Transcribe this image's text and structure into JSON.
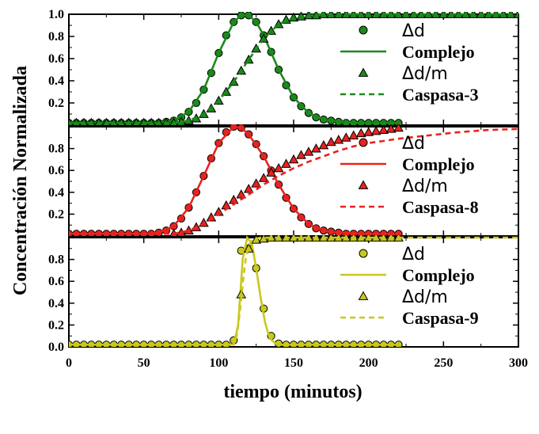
{
  "chart_data": {
    "type": "line",
    "xlabel": "tiempo (minutos)",
    "ylabel": "Concentración Normalizada",
    "xlim": [
      0,
      300
    ],
    "x_ticks": [
      "0",
      "50",
      "100",
      "150",
      "200",
      "250",
      "300"
    ],
    "grid": false,
    "legend_position": "right",
    "panels": [
      {
        "id": "caspasa-3",
        "color": "#1a8a1a",
        "ylim": [
          0,
          1.0
        ],
        "y_ticks": [
          "1.0",
          "0.8",
          "0.6",
          "0.4",
          "0.2"
        ],
        "series": [
          {
            "name": "Δd",
            "style": "circle",
            "x": [
              0,
              5,
              10,
              15,
              20,
              25,
              30,
              35,
              40,
              45,
              50,
              55,
              60,
              65,
              70,
              75,
              80,
              85,
              90,
              95,
              100,
              105,
              110,
              115,
              120,
              125,
              130,
              135,
              140,
              145,
              150,
              155,
              160,
              165,
              170,
              175,
              180,
              185,
              190,
              195,
              200,
              205,
              210,
              215,
              220
            ],
            "y": [
              0.02,
              0.02,
              0.02,
              0.02,
              0.02,
              0.02,
              0.02,
              0.02,
              0.02,
              0.02,
              0.02,
              0.02,
              0.02,
              0.03,
              0.04,
              0.07,
              0.12,
              0.2,
              0.32,
              0.47,
              0.65,
              0.81,
              0.93,
              0.99,
              0.99,
              0.93,
              0.81,
              0.66,
              0.5,
              0.36,
              0.25,
              0.17,
              0.11,
              0.07,
              0.05,
              0.04,
              0.03,
              0.02,
              0.02,
              0.02,
              0.02,
              0.02,
              0.02,
              0.02,
              0.02
            ]
          },
          {
            "name": "Complejo",
            "style": "solid",
            "x": [
              0,
              50,
              60,
              70,
              80,
              90,
              100,
              110,
              115,
              120,
              125,
              130,
              140,
              150,
              160,
              170,
              180,
              190,
              200,
              220
            ],
            "y": [
              0.02,
              0.02,
              0.02,
              0.04,
              0.12,
              0.32,
              0.65,
              0.93,
              0.99,
              0.99,
              0.93,
              0.81,
              0.5,
              0.25,
              0.11,
              0.05,
              0.03,
              0.02,
              0.02,
              0.02
            ]
          },
          {
            "name": "Δd/m",
            "style": "triangle",
            "x": [
              0,
              5,
              10,
              15,
              20,
              25,
              30,
              35,
              40,
              45,
              50,
              55,
              60,
              65,
              70,
              75,
              80,
              85,
              90,
              95,
              100,
              105,
              110,
              115,
              120,
              125,
              130,
              135,
              140,
              145,
              150,
              155,
              160,
              165,
              170,
              175,
              180,
              185,
              190,
              195,
              200,
              205,
              210,
              215,
              220,
              225,
              230,
              235,
              240,
              245,
              250,
              255,
              260,
              265,
              270,
              275,
              280,
              285,
              290,
              295,
              300
            ],
            "y": [
              0.02,
              0.02,
              0.02,
              0.02,
              0.02,
              0.02,
              0.02,
              0.02,
              0.02,
              0.02,
              0.02,
              0.02,
              0.02,
              0.02,
              0.02,
              0.03,
              0.04,
              0.06,
              0.1,
              0.15,
              0.22,
              0.3,
              0.39,
              0.49,
              0.59,
              0.69,
              0.78,
              0.85,
              0.91,
              0.95,
              0.97,
              0.98,
              0.99,
              0.99,
              1.0,
              1.0,
              1.0,
              1.0,
              1.0,
              1.0,
              1.0,
              1.0,
              1.0,
              1.0,
              1.0,
              1.0,
              1.0,
              1.0,
              1.0,
              1.0,
              1.0,
              1.0,
              1.0,
              1.0,
              1.0,
              1.0,
              1.0,
              1.0,
              1.0,
              1.0,
              1.0
            ]
          },
          {
            "name": "Caspasa-3",
            "style": "dashed",
            "x": [
              0,
              70,
              80,
              90,
              100,
              110,
              120,
              130,
              140,
              150,
              160,
              170,
              180,
              200,
              250,
              300
            ],
            "y": [
              0.02,
              0.02,
              0.04,
              0.1,
              0.22,
              0.39,
              0.59,
              0.78,
              0.91,
              0.97,
              0.99,
              1.0,
              1.0,
              1.0,
              1.0,
              1.0
            ]
          }
        ]
      },
      {
        "id": "caspasa-8",
        "color": "#e8231f",
        "ylim": [
          0,
          1.0
        ],
        "y_ticks": [
          "0.8",
          "0.6",
          "0.4",
          "0.2"
        ],
        "series": [
          {
            "name": "Δd",
            "style": "circle",
            "x": [
              0,
              5,
              10,
              15,
              20,
              25,
              30,
              35,
              40,
              45,
              50,
              55,
              60,
              65,
              70,
              75,
              80,
              85,
              90,
              95,
              100,
              105,
              110,
              115,
              120,
              125,
              130,
              135,
              140,
              145,
              150,
              155,
              160,
              165,
              170,
              175,
              180,
              185,
              190,
              195,
              200,
              205,
              210,
              215,
              220
            ],
            "y": [
              0.02,
              0.02,
              0.02,
              0.02,
              0.02,
              0.02,
              0.02,
              0.02,
              0.02,
              0.02,
              0.02,
              0.02,
              0.03,
              0.05,
              0.09,
              0.16,
              0.26,
              0.4,
              0.55,
              0.71,
              0.85,
              0.95,
              1.0,
              0.99,
              0.93,
              0.84,
              0.73,
              0.6,
              0.47,
              0.35,
              0.25,
              0.17,
              0.11,
              0.07,
              0.05,
              0.04,
              0.03,
              0.02,
              0.02,
              0.02,
              0.02,
              0.02,
              0.02,
              0.02,
              0.02
            ]
          },
          {
            "name": "Complejo",
            "style": "solid",
            "x": [
              0,
              50,
              60,
              70,
              80,
              90,
              100,
              110,
              115,
              120,
              130,
              140,
              150,
              160,
              170,
              180,
              200,
              220
            ],
            "y": [
              0.02,
              0.02,
              0.03,
              0.09,
              0.26,
              0.55,
              0.85,
              1.0,
              0.99,
              0.93,
              0.73,
              0.47,
              0.25,
              0.11,
              0.05,
              0.03,
              0.02,
              0.02
            ]
          },
          {
            "name": "Δd/m",
            "style": "triangle",
            "x": [
              70,
              75,
              80,
              85,
              90,
              95,
              100,
              105,
              110,
              115,
              120,
              125,
              130,
              135,
              140,
              145,
              150,
              155,
              160,
              165,
              170,
              175,
              180,
              185,
              190,
              195,
              200,
              205,
              210,
              215,
              220
            ],
            "y": [
              0.02,
              0.03,
              0.05,
              0.08,
              0.12,
              0.17,
              0.22,
              0.28,
              0.33,
              0.38,
              0.43,
              0.48,
              0.53,
              0.58,
              0.62,
              0.66,
              0.7,
              0.74,
              0.77,
              0.8,
              0.83,
              0.86,
              0.88,
              0.9,
              0.92,
              0.94,
              0.95,
              0.96,
              0.97,
              0.98,
              0.99
            ]
          },
          {
            "name": "Caspasa-8",
            "style": "dashed",
            "x": [
              0,
              70,
              80,
              90,
              100,
              110,
              120,
              130,
              140,
              150,
              160,
              170,
              180,
              190,
              200,
              220,
              240,
              260,
              280,
              300
            ],
            "y": [
              0.02,
              0.02,
              0.05,
              0.11,
              0.2,
              0.29,
              0.38,
              0.47,
              0.55,
              0.62,
              0.68,
              0.73,
              0.78,
              0.82,
              0.85,
              0.89,
              0.92,
              0.95,
              0.97,
              0.98
            ]
          }
        ]
      },
      {
        "id": "caspasa-9",
        "color": "#c9c81e",
        "ylim": [
          0,
          1.0
        ],
        "y_ticks": [
          "0.8",
          "0.6",
          "0.4",
          "0.2",
          "0.0"
        ],
        "series": [
          {
            "name": "Δd",
            "style": "circle",
            "x": [
              0,
              5,
              10,
              15,
              20,
              25,
              30,
              35,
              40,
              45,
              50,
              55,
              60,
              65,
              70,
              75,
              80,
              85,
              90,
              95,
              100,
              105,
              110,
              115,
              120,
              125,
              130,
              135,
              140,
              145,
              150,
              155,
              160,
              165,
              170,
              175,
              180,
              185,
              190,
              195,
              200,
              205,
              210,
              215,
              220
            ],
            "y": [
              0.02,
              0.02,
              0.02,
              0.02,
              0.02,
              0.02,
              0.02,
              0.02,
              0.02,
              0.02,
              0.02,
              0.02,
              0.02,
              0.02,
              0.02,
              0.02,
              0.02,
              0.02,
              0.02,
              0.02,
              0.02,
              0.02,
              0.06,
              0.88,
              0.9,
              0.72,
              0.35,
              0.1,
              0.03,
              0.02,
              0.02,
              0.02,
              0.02,
              0.02,
              0.02,
              0.02,
              0.02,
              0.02,
              0.02,
              0.02,
              0.02,
              0.02,
              0.02,
              0.02,
              0.02
            ]
          },
          {
            "name": "Complejo",
            "style": "solid",
            "x": [
              0,
              110,
              113,
              116,
              119,
              122,
              125,
              128,
              131,
              134,
              138,
              142,
              150,
              220
            ],
            "y": [
              0.02,
              0.02,
              0.2,
              0.8,
              1.0,
              0.95,
              0.72,
              0.45,
              0.22,
              0.08,
              0.03,
              0.02,
              0.02,
              0.02
            ]
          },
          {
            "name": "Δd/m",
            "style": "triangle",
            "x": [
              115,
              120,
              125,
              130,
              135,
              140,
              145,
              150,
              155,
              160,
              165,
              170,
              175,
              180,
              185,
              190,
              195,
              200,
              205,
              210,
              215,
              220
            ],
            "y": [
              0.48,
              0.9,
              0.98,
              0.99,
              1.0,
              1.0,
              1.0,
              1.0,
              1.0,
              1.0,
              1.0,
              1.0,
              1.0,
              1.0,
              1.0,
              1.0,
              1.0,
              1.0,
              1.0,
              1.0,
              1.0,
              1.0
            ]
          },
          {
            "name": "Caspasa-9",
            "style": "dashed",
            "x": [
              0,
              110,
              112,
              114,
              116,
              118,
              120,
              122,
              125,
              128,
              131,
              135,
              140,
              150,
              160,
              200,
              250,
              300
            ],
            "y": [
              0.02,
              0.02,
              0.1,
              0.3,
              0.58,
              0.8,
              0.92,
              0.97,
              0.99,
              1.0,
              1.0,
              1.0,
              1.0,
              1.0,
              1.0,
              1.0,
              1.0,
              1.0
            ]
          }
        ]
      }
    ]
  }
}
